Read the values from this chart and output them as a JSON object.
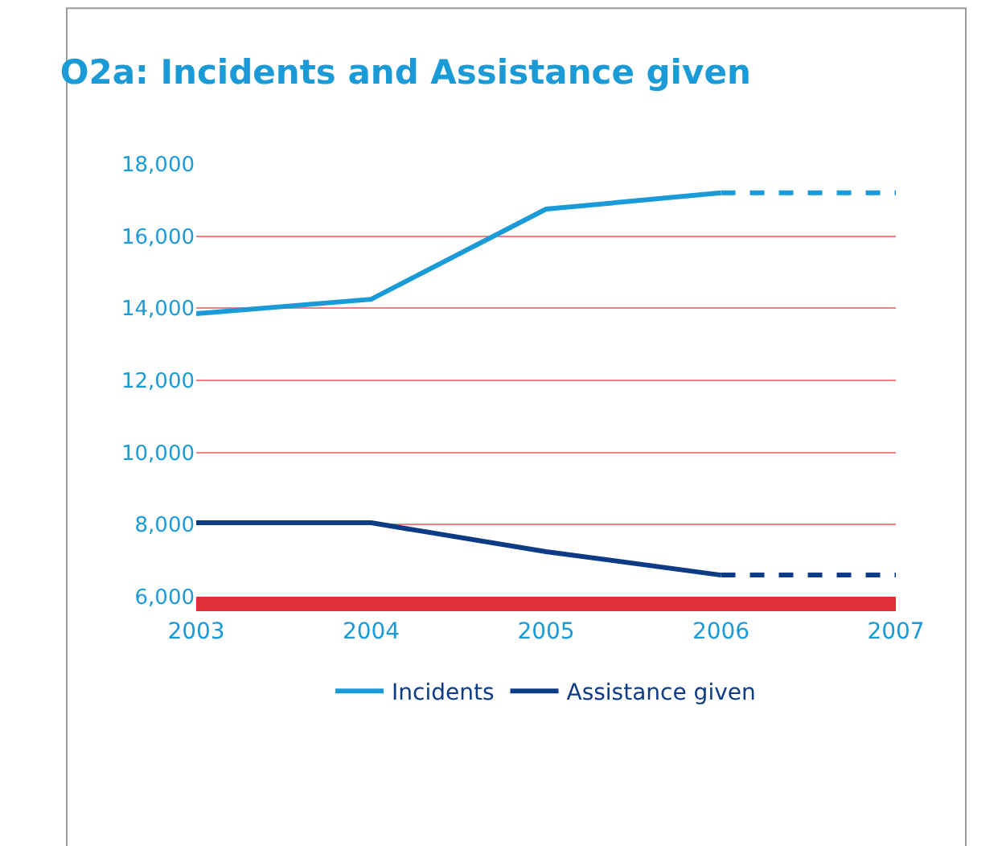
{
  "chart_data": {
    "type": "line",
    "title": "O2a: Incidents and Assistance given",
    "series": [
      {
        "name": "Incidents",
        "color": "#1a9ad6",
        "x": [
          2003,
          2004,
          2005,
          2006
        ],
        "values": [
          13850,
          14250,
          16750,
          17200
        ]
      },
      {
        "name": "Assistance given",
        "color": "#0d3b85",
        "x": [
          2003,
          2004,
          2005,
          2006
        ],
        "values": [
          8050,
          8050,
          7250,
          6600
        ]
      },
      {
        "color": "#1a9ad6",
        "x": [
          2006,
          2007
        ],
        "values": [
          17200,
          17200
        ],
        "line_style": "dashed"
      },
      {
        "color": "#0d3b85",
        "x": [
          2006,
          2007
        ],
        "values": [
          6600,
          6600
        ],
        "line_style": "dashed"
      }
    ],
    "xlim": [
      2003,
      2007
    ],
    "xticks": [
      2003,
      2004,
      2005,
      2006,
      2007
    ],
    "ylim": [
      6000,
      18000
    ],
    "yticks": [
      {
        "value": 6000,
        "label": "6,000"
      },
      {
        "value": 8000,
        "label": "8,000"
      },
      {
        "value": 10000,
        "label": "10,000"
      },
      {
        "value": 12000,
        "label": "12,000"
      },
      {
        "value": 14000,
        "label": "14,000"
      },
      {
        "value": 16000,
        "label": "16,000"
      },
      {
        "value": 18000,
        "label": "18,000"
      }
    ],
    "grid": "y",
    "legend": "bottom"
  }
}
